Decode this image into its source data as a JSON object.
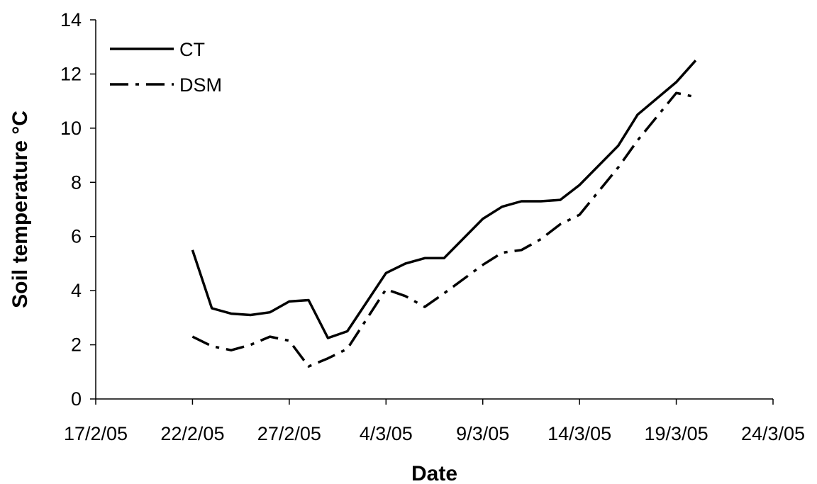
{
  "chart_data": {
    "type": "line",
    "title": "",
    "xlabel": "Date",
    "ylabel": "Soil temperature °C",
    "x_tick_labels": [
      "17/2/05",
      "22/2/05",
      "27/2/05",
      "4/3/05",
      "9/3/05",
      "14/3/05",
      "19/3/05",
      "24/3/05"
    ],
    "y_tick_labels": [
      "0",
      "2",
      "4",
      "6",
      "8",
      "10",
      "12",
      "14"
    ],
    "ylim": [
      0,
      14
    ],
    "xlim": [
      "17/2/05",
      "24/3/05"
    ],
    "grid": false,
    "legend_position": "top-left",
    "series": [
      {
        "name": "CT",
        "style": "solid",
        "color": "#000000",
        "points": [
          {
            "x": "22/2/05",
            "y": 5.5
          },
          {
            "x": "23/2/05",
            "y": 3.35
          },
          {
            "x": "24/2/05",
            "y": 3.15
          },
          {
            "x": "25/2/05",
            "y": 3.1
          },
          {
            "x": "26/2/05",
            "y": 3.2
          },
          {
            "x": "27/2/05",
            "y": 3.6
          },
          {
            "x": "28/2/05",
            "y": 3.65
          },
          {
            "x": "1/3/05",
            "y": 2.25
          },
          {
            "x": "2/3/05",
            "y": 2.5
          },
          {
            "x": "4/3/05",
            "y": 4.65
          },
          {
            "x": "5/3/05",
            "y": 5.0
          },
          {
            "x": "6/3/05",
            "y": 5.2
          },
          {
            "x": "7/3/05",
            "y": 5.2
          },
          {
            "x": "9/3/05",
            "y": 6.65
          },
          {
            "x": "10/3/05",
            "y": 7.1
          },
          {
            "x": "11/3/05",
            "y": 7.3
          },
          {
            "x": "12/3/05",
            "y": 7.3
          },
          {
            "x": "13/3/05",
            "y": 7.35
          },
          {
            "x": "14/3/05",
            "y": 7.9
          },
          {
            "x": "16/3/05",
            "y": 9.35
          },
          {
            "x": "17/3/05",
            "y": 10.5
          },
          {
            "x": "19/3/05",
            "y": 11.7
          },
          {
            "x": "20/3/05",
            "y": 12.5
          }
        ]
      },
      {
        "name": "DSM",
        "style": "dash-dot",
        "color": "#000000",
        "points": [
          {
            "x": "22/2/05",
            "y": 2.3
          },
          {
            "x": "23/2/05",
            "y": 1.95
          },
          {
            "x": "24/2/05",
            "y": 1.8
          },
          {
            "x": "25/2/05",
            "y": 2.0
          },
          {
            "x": "26/2/05",
            "y": 2.3
          },
          {
            "x": "27/2/05",
            "y": 2.15
          },
          {
            "x": "28/2/05",
            "y": 1.2
          },
          {
            "x": "1/3/05",
            "y": 1.5
          },
          {
            "x": "2/3/05",
            "y": 1.85
          },
          {
            "x": "4/3/05",
            "y": 4.05
          },
          {
            "x": "5/3/05",
            "y": 3.8
          },
          {
            "x": "6/3/05",
            "y": 3.4
          },
          {
            "x": "7/3/05",
            "y": 3.9
          },
          {
            "x": "9/3/05",
            "y": 4.95
          },
          {
            "x": "10/3/05",
            "y": 5.4
          },
          {
            "x": "11/3/05",
            "y": 5.5
          },
          {
            "x": "12/3/05",
            "y": 5.9
          },
          {
            "x": "13/3/05",
            "y": 6.45
          },
          {
            "x": "14/3/05",
            "y": 6.8
          },
          {
            "x": "16/3/05",
            "y": 8.55
          },
          {
            "x": "17/3/05",
            "y": 9.55
          },
          {
            "x": "19/3/05",
            "y": 11.3
          },
          {
            "x": "20/3/05",
            "y": 11.15
          }
        ]
      }
    ]
  }
}
